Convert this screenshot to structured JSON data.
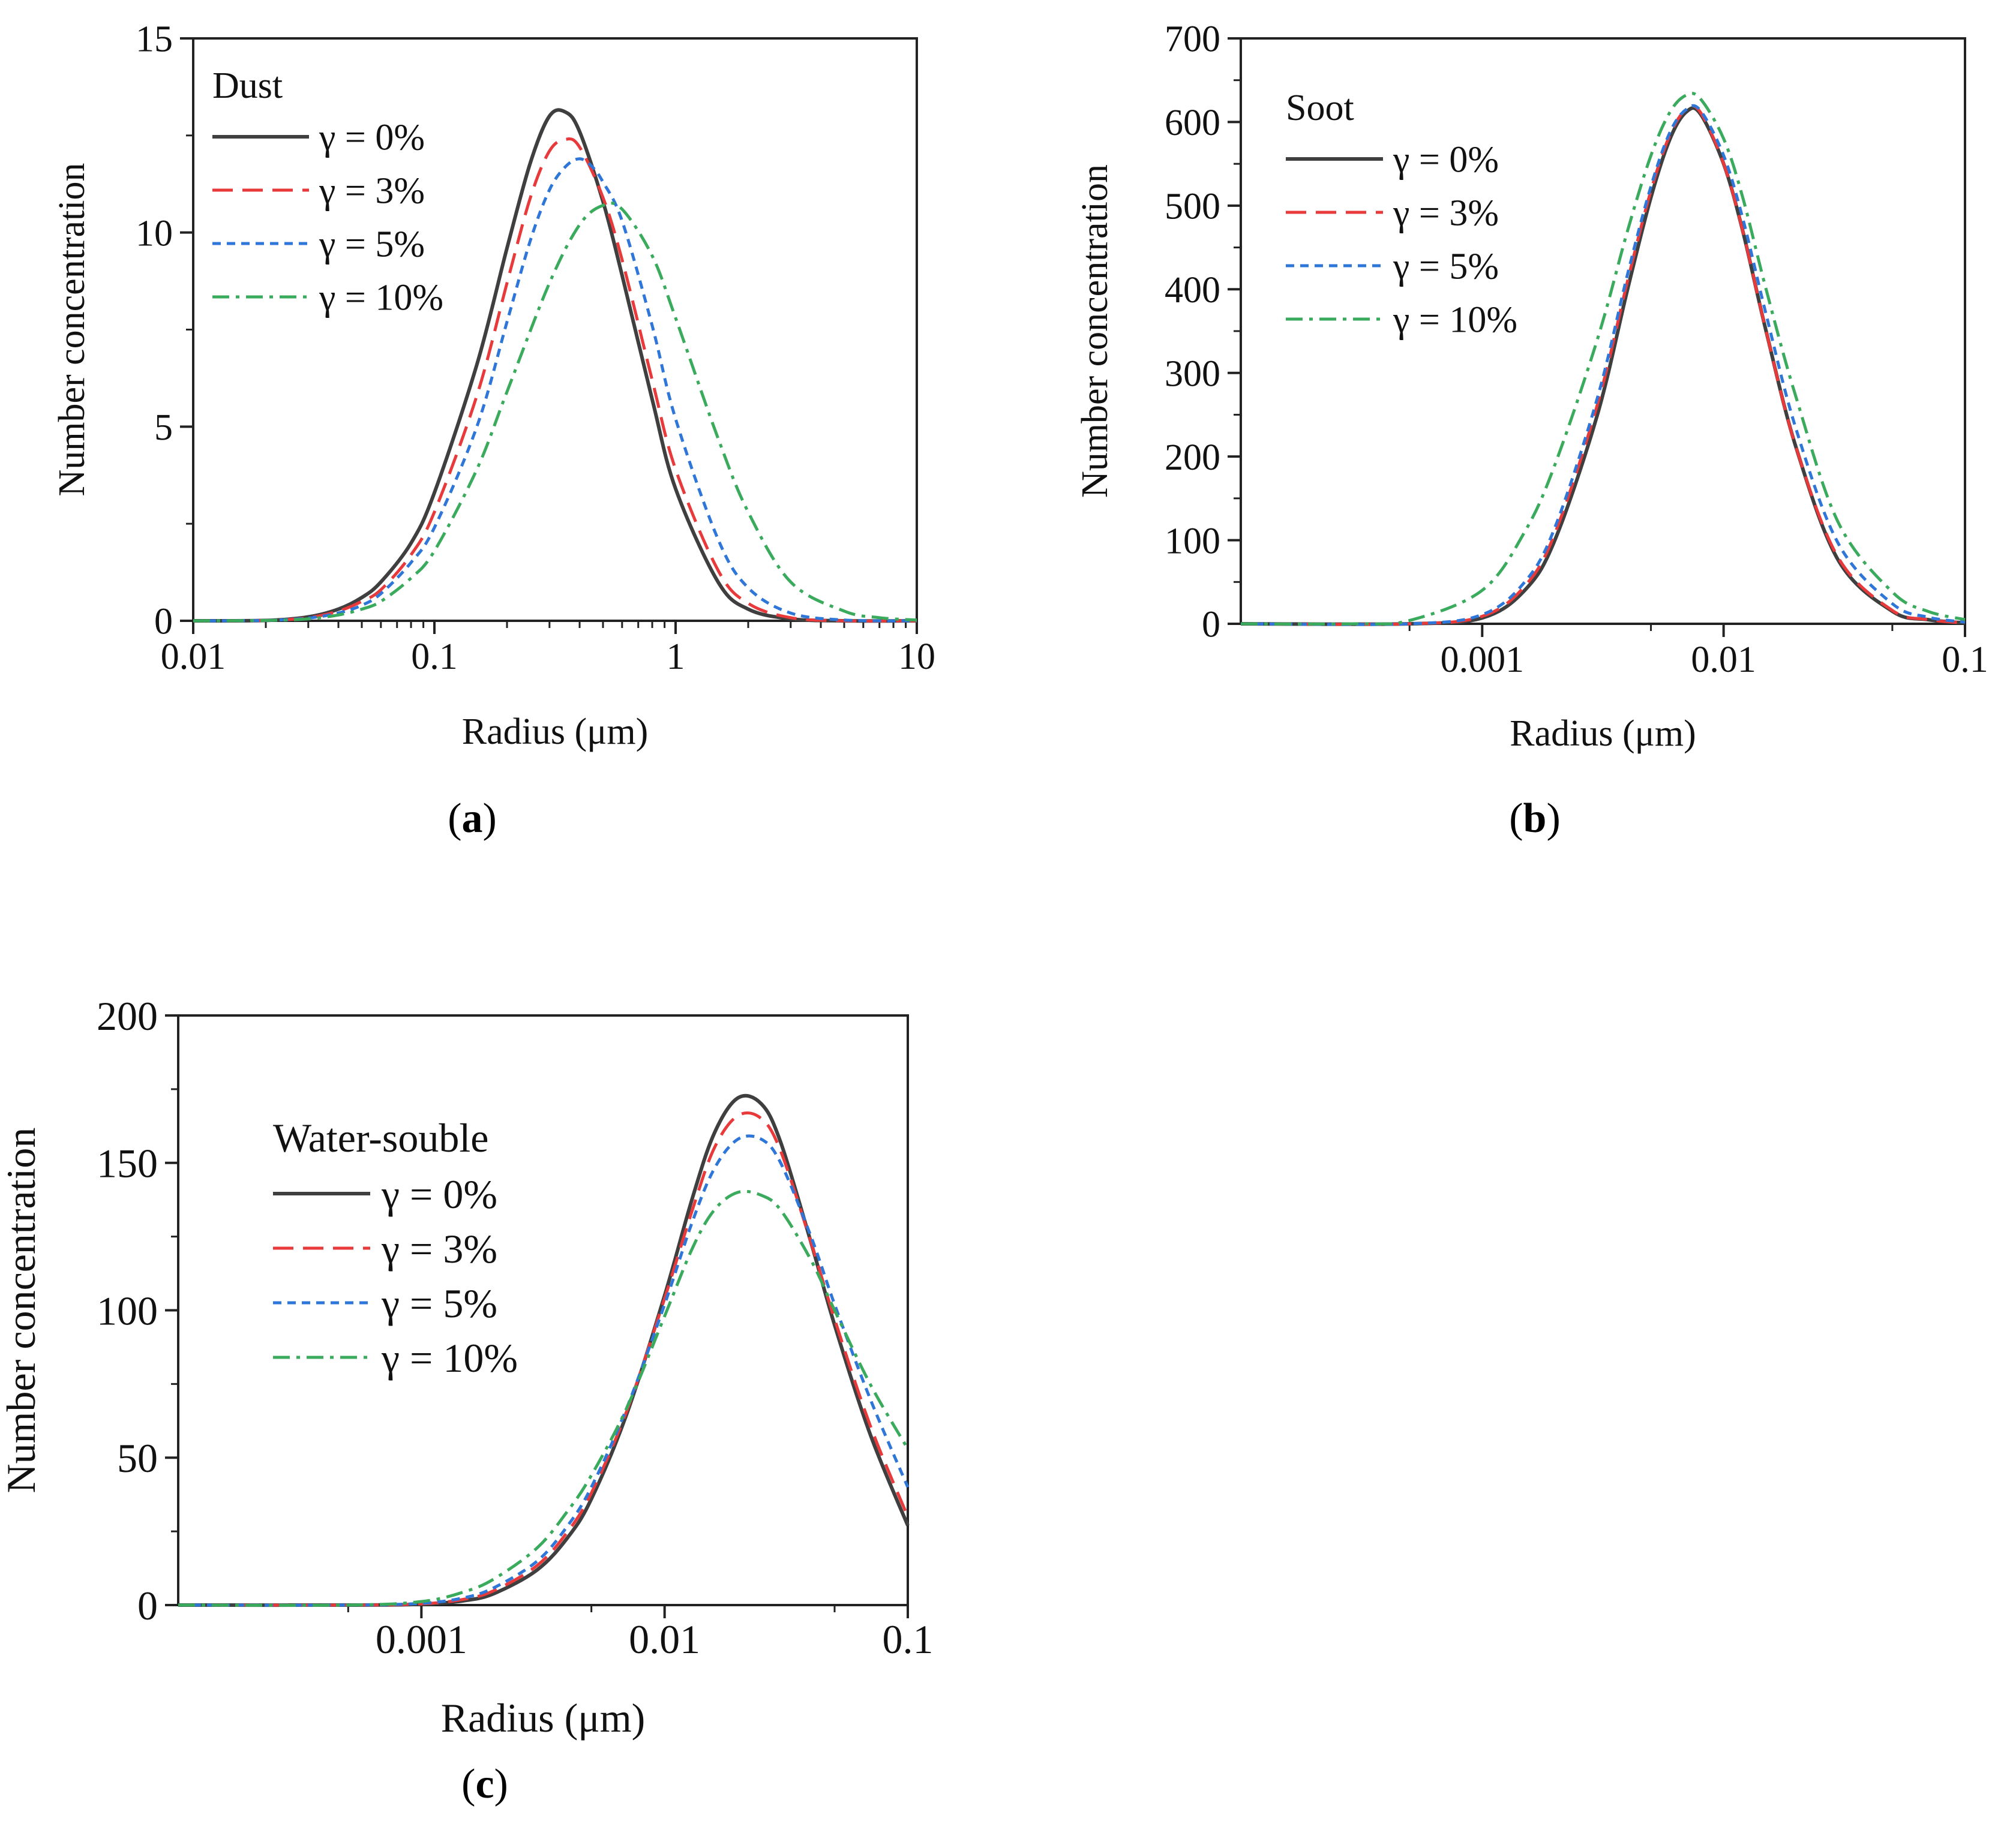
{
  "figure": {
    "labels": {
      "a": {
        "open": "(",
        "letter": "a",
        "close": ")"
      },
      "b": {
        "open": "(",
        "letter": "b",
        "close": ")"
      },
      "c": {
        "open": "(",
        "letter": "c",
        "close": ")"
      }
    }
  },
  "colors": {
    "g0": "#3f3f3f",
    "g3": "#e8393b",
    "g5": "#2f76d9",
    "g10": "#3aaa5c"
  },
  "chart_data": [
    {
      "id": "a",
      "type": "line",
      "x_scale": "log",
      "title": "Dust",
      "xlabel": "Radius (μm)",
      "ylabel": "Number concentration",
      "xlim": [
        0.01,
        10
      ],
      "ylim": [
        0,
        15
      ],
      "x_ticks": [
        0.01,
        0.1,
        1,
        10
      ],
      "x_tick_labels": [
        "0.01",
        "0.1",
        "1",
        "10"
      ],
      "y_ticks": [
        0,
        5,
        10,
        15
      ],
      "y_tick_labels": [
        "0",
        "5",
        "10",
        "15"
      ],
      "legend_position": "top-left",
      "series": [
        {
          "name": "γ = 0%",
          "style": "solid",
          "color_key": "g0",
          "x": [
            0.01,
            0.02,
            0.03,
            0.04,
            0.05,
            0.06,
            0.08,
            0.1,
            0.15,
            0.2,
            0.25,
            0.3,
            0.35,
            0.4,
            0.5,
            0.6,
            0.8,
            1.0,
            1.5,
            2.0,
            3.0,
            5.0,
            10.0
          ],
          "y": [
            0.0,
            0.01,
            0.1,
            0.3,
            0.6,
            1.0,
            2.0,
            3.3,
            6.6,
            9.6,
            11.8,
            13.0,
            13.1,
            12.6,
            10.8,
            8.9,
            5.7,
            3.4,
            1.0,
            0.3,
            0.05,
            0.0,
            0.0
          ]
        },
        {
          "name": "γ = 3%",
          "style": "dashed",
          "color_key": "g3",
          "x": [
            0.01,
            0.02,
            0.03,
            0.04,
            0.05,
            0.06,
            0.08,
            0.1,
            0.15,
            0.2,
            0.25,
            0.3,
            0.35,
            0.4,
            0.5,
            0.6,
            0.8,
            1.0,
            1.5,
            2.0,
            3.0,
            5.0,
            10.0
          ],
          "y": [
            0.0,
            0.01,
            0.08,
            0.25,
            0.5,
            0.8,
            1.7,
            2.8,
            5.8,
            8.7,
            10.9,
            12.1,
            12.4,
            12.2,
            10.9,
            9.3,
            6.2,
            3.9,
            1.3,
            0.45,
            0.08,
            0.0,
            0.0
          ]
        },
        {
          "name": "γ = 5%",
          "style": "dotted",
          "color_key": "g5",
          "x": [
            0.01,
            0.02,
            0.03,
            0.04,
            0.05,
            0.06,
            0.08,
            0.1,
            0.15,
            0.2,
            0.25,
            0.3,
            0.35,
            0.4,
            0.45,
            0.5,
            0.6,
            0.8,
            1.0,
            1.5,
            2.0,
            3.0,
            5.0,
            10.0
          ],
          "y": [
            0.0,
            0.01,
            0.07,
            0.2,
            0.4,
            0.7,
            1.5,
            2.4,
            5.0,
            7.7,
            9.8,
            11.1,
            11.7,
            11.9,
            11.7,
            11.3,
            10.3,
            7.6,
            5.2,
            2.1,
            0.85,
            0.2,
            0.02,
            0.0
          ]
        },
        {
          "name": "γ = 10%",
          "style": "dashdot",
          "color_key": "g10",
          "x": [
            0.01,
            0.02,
            0.03,
            0.04,
            0.05,
            0.06,
            0.08,
            0.1,
            0.15,
            0.2,
            0.3,
            0.4,
            0.5,
            0.6,
            0.8,
            1.0,
            1.5,
            2.0,
            3.0,
            5.0,
            7.0,
            10.0
          ],
          "y": [
            0.0,
            0.01,
            0.05,
            0.15,
            0.3,
            0.5,
            1.1,
            1.8,
            3.9,
            5.9,
            8.7,
            10.2,
            10.7,
            10.6,
            9.4,
            7.8,
            4.7,
            2.8,
            1.0,
            0.25,
            0.08,
            0.02
          ]
        }
      ]
    },
    {
      "id": "b",
      "type": "line",
      "x_scale": "log",
      "title": "Soot",
      "xlabel": "Radius (μm)",
      "ylabel": "Number concentration",
      "xlim": [
        0.0001,
        0.1
      ],
      "ylim": [
        0,
        700
      ],
      "x_ticks": [
        0.001,
        0.01,
        0.1
      ],
      "x_tick_labels": [
        "0.001",
        "0.01",
        "0.1"
      ],
      "y_ticks": [
        0,
        100,
        200,
        300,
        400,
        500,
        600,
        700
      ],
      "y_tick_labels": [
        "0",
        "100",
        "200",
        "300",
        "400",
        "500",
        "600",
        "700"
      ],
      "legend_position": "top-left",
      "series": [
        {
          "name": "γ = 0%",
          "style": "solid",
          "color_key": "g0",
          "x": [
            0.0001,
            0.0005,
            0.001,
            0.0015,
            0.002,
            0.003,
            0.004,
            0.005,
            0.006,
            0.007,
            0.008,
            0.01,
            0.012,
            0.015,
            0.02,
            0.03,
            0.05,
            0.07,
            0.1
          ],
          "y": [
            0,
            0,
            7,
            40,
            100,
            250,
            400,
            510,
            580,
            612,
            610,
            550,
            470,
            350,
            210,
            75,
            15,
            5,
            1
          ]
        },
        {
          "name": "γ = 3%",
          "style": "dashed",
          "color_key": "g3",
          "x": [
            0.0001,
            0.0005,
            0.001,
            0.0015,
            0.002,
            0.003,
            0.004,
            0.005,
            0.006,
            0.007,
            0.008,
            0.01,
            0.012,
            0.015,
            0.02,
            0.03,
            0.05,
            0.07,
            0.1
          ],
          "y": [
            0,
            0,
            9,
            45,
            108,
            262,
            410,
            518,
            585,
            615,
            612,
            550,
            470,
            350,
            210,
            78,
            16,
            5,
            1
          ]
        },
        {
          "name": "γ = 5%",
          "style": "dotted",
          "color_key": "g5",
          "x": [
            0.0001,
            0.0005,
            0.001,
            0.0015,
            0.002,
            0.003,
            0.004,
            0.005,
            0.006,
            0.007,
            0.008,
            0.01,
            0.012,
            0.015,
            0.02,
            0.03,
            0.05,
            0.07,
            0.1
          ],
          "y": [
            0,
            0,
            11,
            50,
            115,
            270,
            418,
            523,
            588,
            615,
            614,
            560,
            485,
            370,
            232,
            95,
            24,
            8,
            2
          ]
        },
        {
          "name": "γ = 10%",
          "style": "dashdot",
          "color_key": "g10",
          "x": [
            0.0001,
            0.0003,
            0.0005,
            0.001,
            0.0015,
            0.002,
            0.003,
            0.004,
            0.005,
            0.006,
            0.007,
            0.008,
            0.01,
            0.012,
            0.015,
            0.02,
            0.03,
            0.05,
            0.07,
            0.1
          ],
          "y": [
            0,
            0,
            4,
            40,
            110,
            190,
            340,
            470,
            560,
            612,
            632,
            628,
            580,
            510,
            400,
            270,
            120,
            38,
            15,
            5
          ]
        }
      ]
    },
    {
      "id": "c",
      "type": "line",
      "x_scale": "log",
      "title": "Water-souble",
      "xlabel": "Radius (μm)",
      "ylabel": "Number concentration",
      "xlim": [
        0.0001,
        0.1
      ],
      "ylim": [
        0,
        200
      ],
      "x_ticks": [
        0.001,
        0.01,
        0.1
      ],
      "x_tick_labels": [
        "0.001",
        "0.01",
        "0.1"
      ],
      "y_ticks": [
        0,
        50,
        100,
        150,
        200
      ],
      "y_tick_labels": [
        "0",
        "50",
        "100",
        "150",
        "200"
      ],
      "legend_position": "upper-left",
      "series": [
        {
          "name": "γ = 0%",
          "style": "solid",
          "color_key": "g0",
          "x": [
            0.0001,
            0.0005,
            0.001,
            0.0015,
            0.002,
            0.003,
            0.004,
            0.005,
            0.007,
            0.01,
            0.013,
            0.016,
            0.02,
            0.025,
            0.03,
            0.04,
            0.05,
            0.07,
            0.1
          ],
          "y": [
            0,
            0,
            0.3,
            1.5,
            4,
            12,
            23,
            36,
            65,
            105,
            138,
            160,
            172,
            170,
            157,
            123,
            95,
            58,
            27
          ]
        },
        {
          "name": "γ = 3%",
          "style": "dashed",
          "color_key": "g3",
          "x": [
            0.0001,
            0.0005,
            0.001,
            0.0015,
            0.002,
            0.003,
            0.004,
            0.005,
            0.007,
            0.01,
            0.013,
            0.016,
            0.02,
            0.025,
            0.03,
            0.04,
            0.05,
            0.07,
            0.1
          ],
          "y": [
            0,
            0,
            0.4,
            2,
            5,
            13.5,
            25,
            38,
            66,
            104,
            134,
            155,
            166,
            165,
            154,
            123,
            97,
            61,
            30
          ]
        },
        {
          "name": "γ = 5%",
          "style": "dotted",
          "color_key": "g5",
          "x": [
            0.0001,
            0.0005,
            0.001,
            0.0015,
            0.002,
            0.003,
            0.004,
            0.005,
            0.007,
            0.01,
            0.013,
            0.016,
            0.02,
            0.025,
            0.03,
            0.04,
            0.05,
            0.07,
            0.1
          ],
          "y": [
            0,
            0,
            0.6,
            2.5,
            6,
            15,
            27,
            40,
            67,
            102,
            130,
            148,
            158,
            158,
            150,
            125,
            102,
            70,
            40
          ]
        },
        {
          "name": "γ = 10%",
          "style": "dashdot",
          "color_key": "g10",
          "x": [
            0.0001,
            0.0005,
            0.001,
            0.0015,
            0.002,
            0.003,
            0.004,
            0.005,
            0.007,
            0.01,
            0.013,
            0.016,
            0.02,
            0.025,
            0.03,
            0.04,
            0.05,
            0.07,
            0.1
          ],
          "y": [
            0,
            0,
            1.2,
            4.5,
            9,
            19.5,
            32,
            44,
            67,
            98,
            121,
            134,
            140,
            139,
            134,
            117,
            100,
            75,
            53
          ]
        }
      ]
    }
  ]
}
